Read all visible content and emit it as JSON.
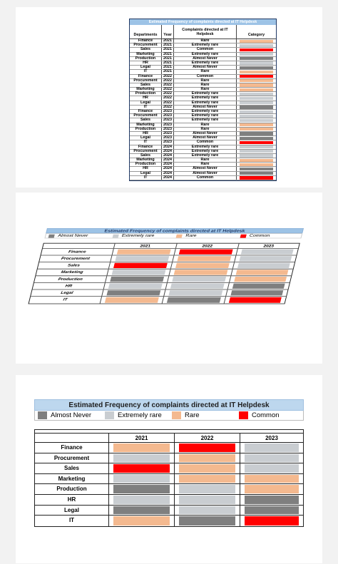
{
  "colors": {
    "almost_never": "#7f7f7f",
    "extremely_rare": "#c9cdd1",
    "rare": "#f4b98f",
    "common": "#ff0000",
    "title_bg": "#bdd7ee"
  },
  "long_table": {
    "title": "Estimated Frequency of complaints directed at IT Helpdesk",
    "headers": {
      "dept": "Departments",
      "year": "Year",
      "complaints": "Complaints directed at IT Helpdesk",
      "category": "Category"
    },
    "rows": [
      {
        "dept": "Finance",
        "year": "2021",
        "val": "Rare",
        "cat": "rare"
      },
      {
        "dept": "Procurement",
        "year": "2021",
        "val": "Extremely rare",
        "cat": "extremely_rare"
      },
      {
        "dept": "Sales",
        "year": "2021",
        "val": "Common",
        "cat": "common"
      },
      {
        "dept": "Marketing",
        "year": "2021",
        "val": "Extremely rare",
        "cat": "extremely_rare"
      },
      {
        "dept": "Production",
        "year": "2021",
        "val": "Almost Never",
        "cat": "almost_never"
      },
      {
        "dept": "HR",
        "year": "2021",
        "val": "Extremely rare",
        "cat": "extremely_rare"
      },
      {
        "dept": "Legal",
        "year": "2021",
        "val": "Almost Never",
        "cat": "almost_never"
      },
      {
        "dept": "IT",
        "year": "2021",
        "val": "Rare",
        "cat": "rare"
      },
      {
        "dept": "Finance",
        "year": "2022",
        "val": "Common",
        "cat": "common"
      },
      {
        "dept": "Procurement",
        "year": "2022",
        "val": "Rare",
        "cat": "rare"
      },
      {
        "dept": "Sales",
        "year": "2022",
        "val": "Rare",
        "cat": "rare"
      },
      {
        "dept": "Marketing",
        "year": "2022",
        "val": "Rare",
        "cat": "rare"
      },
      {
        "dept": "Production",
        "year": "2022",
        "val": "Extremely rare",
        "cat": "extremely_rare"
      },
      {
        "dept": "HR",
        "year": "2022",
        "val": "Extremely rare",
        "cat": "extremely_rare"
      },
      {
        "dept": "Legal",
        "year": "2022",
        "val": "Extremely rare",
        "cat": "extremely_rare"
      },
      {
        "dept": "IT",
        "year": "2022",
        "val": "Almost Never",
        "cat": "almost_never"
      },
      {
        "dept": "Finance",
        "year": "2023",
        "val": "Extremely rare",
        "cat": "extremely_rare"
      },
      {
        "dept": "Procurement",
        "year": "2023",
        "val": "Extremely rare",
        "cat": "extremely_rare"
      },
      {
        "dept": "Sales",
        "year": "2023",
        "val": "Extremely rare",
        "cat": "extremely_rare"
      },
      {
        "dept": "Marketing",
        "year": "2023",
        "val": "Rare",
        "cat": "rare"
      },
      {
        "dept": "Production",
        "year": "2023",
        "val": "Rare",
        "cat": "rare"
      },
      {
        "dept": "HR",
        "year": "2023",
        "val": "Almost Never",
        "cat": "almost_never"
      },
      {
        "dept": "Legal",
        "year": "2023",
        "val": "Almost Never",
        "cat": "almost_never"
      },
      {
        "dept": "IT",
        "year": "2023",
        "val": "Common",
        "cat": "common"
      },
      {
        "dept": "Finance",
        "year": "2024",
        "val": "Extremely rare",
        "cat": "extremely_rare"
      },
      {
        "dept": "Procurement",
        "year": "2024",
        "val": "Extremely rare",
        "cat": "extremely_rare"
      },
      {
        "dept": "Sales",
        "year": "2024",
        "val": "Extremely rare",
        "cat": "extremely_rare"
      },
      {
        "dept": "Marketing",
        "year": "2024",
        "val": "Rare",
        "cat": "rare"
      },
      {
        "dept": "Production",
        "year": "2024",
        "val": "Rare",
        "cat": "rare"
      },
      {
        "dept": "HR",
        "year": "2024",
        "val": "Almost Never",
        "cat": "almost_never"
      },
      {
        "dept": "Legal",
        "year": "2024",
        "val": "Almost Never",
        "cat": "almost_never"
      },
      {
        "dept": "IT",
        "year": "2024",
        "val": "Common",
        "cat": "common"
      }
    ]
  },
  "summary": {
    "title": "Estimated Frequency of complaints directed at IT Helpdesk",
    "legend": [
      {
        "label": "Almost Never",
        "cat": "almost_never"
      },
      {
        "label": "Extremely rare",
        "cat": "extremely_rare"
      },
      {
        "label": "Rare",
        "cat": "rare"
      },
      {
        "label": "Common",
        "cat": "common"
      }
    ],
    "years": [
      "2021",
      "2022",
      "2023"
    ],
    "rows": [
      {
        "dept": "Finance",
        "cats": [
          "rare",
          "common",
          "extremely_rare"
        ]
      },
      {
        "dept": "Procurement",
        "cats": [
          "extremely_rare",
          "rare",
          "extremely_rare"
        ]
      },
      {
        "dept": "Sales",
        "cats": [
          "common",
          "rare",
          "extremely_rare"
        ]
      },
      {
        "dept": "Marketing",
        "cats": [
          "extremely_rare",
          "rare",
          "rare"
        ]
      },
      {
        "dept": "Production",
        "cats": [
          "almost_never",
          "extremely_rare",
          "rare"
        ]
      },
      {
        "dept": "HR",
        "cats": [
          "extremely_rare",
          "extremely_rare",
          "almost_never"
        ]
      },
      {
        "dept": "Legal",
        "cats": [
          "almost_never",
          "extremely_rare",
          "almost_never"
        ]
      },
      {
        "dept": "IT",
        "cats": [
          "rare",
          "almost_never",
          "common"
        ]
      }
    ]
  }
}
